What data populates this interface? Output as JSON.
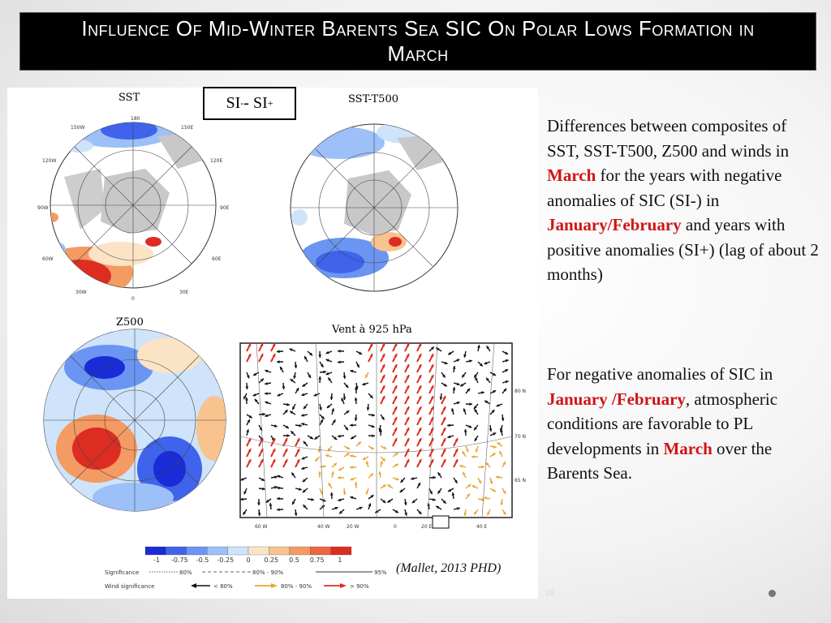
{
  "title": "Influence Of Mid-Winter Barents Sea SIC On Polar Lows Formation in March",
  "panels": {
    "sst": "SST",
    "sst_t500": "SST-T500",
    "z500": "Z500",
    "wind": "Vent à 925 hPa"
  },
  "si_box": {
    "a": "SI",
    "a_sup": "-",
    "sep": " - SI",
    "b_sup": "+"
  },
  "map_labels": {
    "lon": [
      "180",
      "150W",
      "150E",
      "120W",
      "120E",
      "90W",
      "90E",
      "60W",
      "60E",
      "30W",
      "30E",
      "0"
    ],
    "wind_lon": [
      "60 W",
      "40 W",
      "20 W",
      "0",
      "20 E",
      "40 E"
    ],
    "wind_lat": [
      "80 N",
      "70 N",
      "65 N"
    ]
  },
  "colorbar": {
    "ticks": [
      "-1",
      "-0.75",
      "-0.5",
      "-0.25",
      "0",
      "0.25",
      "0.5",
      "0.75",
      "1"
    ],
    "colors": [
      "#1a2bd8",
      "#3f63ea",
      "#6b95f2",
      "#9cc0f7",
      "#cfe3fa",
      "#fbe3c5",
      "#f8c38e",
      "#f49a63",
      "#ec6640",
      "#dd2d22"
    ]
  },
  "legend": {
    "significance_label": "Significance",
    "sig_80": "80%",
    "sig_90": "80% - 90%",
    "sig_95": "95%",
    "wind_label": "Wind significance",
    "w_lt80": "< 80%",
    "w_80_90": "80% - 90%",
    "w_gt90": "> 90%"
  },
  "text": {
    "p1_a": "Differences between composites of SST, SST-T500, Z500 and winds in ",
    "p1_march": "March",
    "p1_b": " for the years with negative anomalies of SIC (SI-) in ",
    "p1_janfeb": "January/February",
    "p1_c": " and years with positive anomalies (SI+) (lag of about 2 months)",
    "p2_a": "For negative anomalies of SIC in ",
    "p2_janfeb": "January /February",
    "p2_b": ", atmospheric conditions are favorable to PL developments in ",
    "p2_march": "March",
    "p2_c": " over the Barents Sea."
  },
  "citation": "(Mallet, 2013 PHD)",
  "footer_number": "19",
  "colors": {
    "title_bg": "#000000",
    "highlight": "#d01414",
    "land": "#c8c8c8"
  }
}
